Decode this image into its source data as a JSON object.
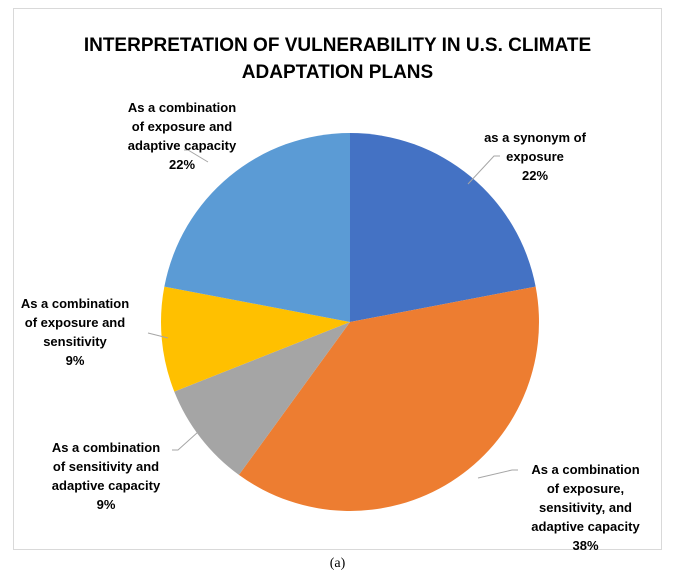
{
  "chart_data": {
    "type": "pie",
    "title_lines": [
      "INTERPRETATION OF VULNERABILITY IN U.S. CLIMATE",
      "ADAPTATION PLANS"
    ],
    "slices": [
      {
        "label_lines": [
          "as a synonym of",
          "exposure"
        ],
        "value": 22,
        "percent_label": "22%",
        "color": "#4472C4"
      },
      {
        "label_lines": [
          "As a combination",
          "of exposure,",
          "sensitivity, and",
          "adaptive capacity"
        ],
        "value": 38,
        "percent_label": "38%",
        "color": "#ED7D31"
      },
      {
        "label_lines": [
          "As a combination",
          "of sensitivity and",
          "adaptive capacity"
        ],
        "value": 9,
        "percent_label": "9%",
        "color": "#A5A5A5"
      },
      {
        "label_lines": [
          "As a combination",
          "of exposure and",
          "sensitivity"
        ],
        "value": 9,
        "percent_label": "9%",
        "color": "#FFC000"
      },
      {
        "label_lines": [
          "As a combination",
          "of exposure and",
          "adaptive capacity"
        ],
        "value": 22,
        "percent_label": "22%",
        "color": "#5B9BD5"
      }
    ],
    "start_angle_deg": 0,
    "direction": "clockwise",
    "legend": "none"
  },
  "caption": "(a)"
}
